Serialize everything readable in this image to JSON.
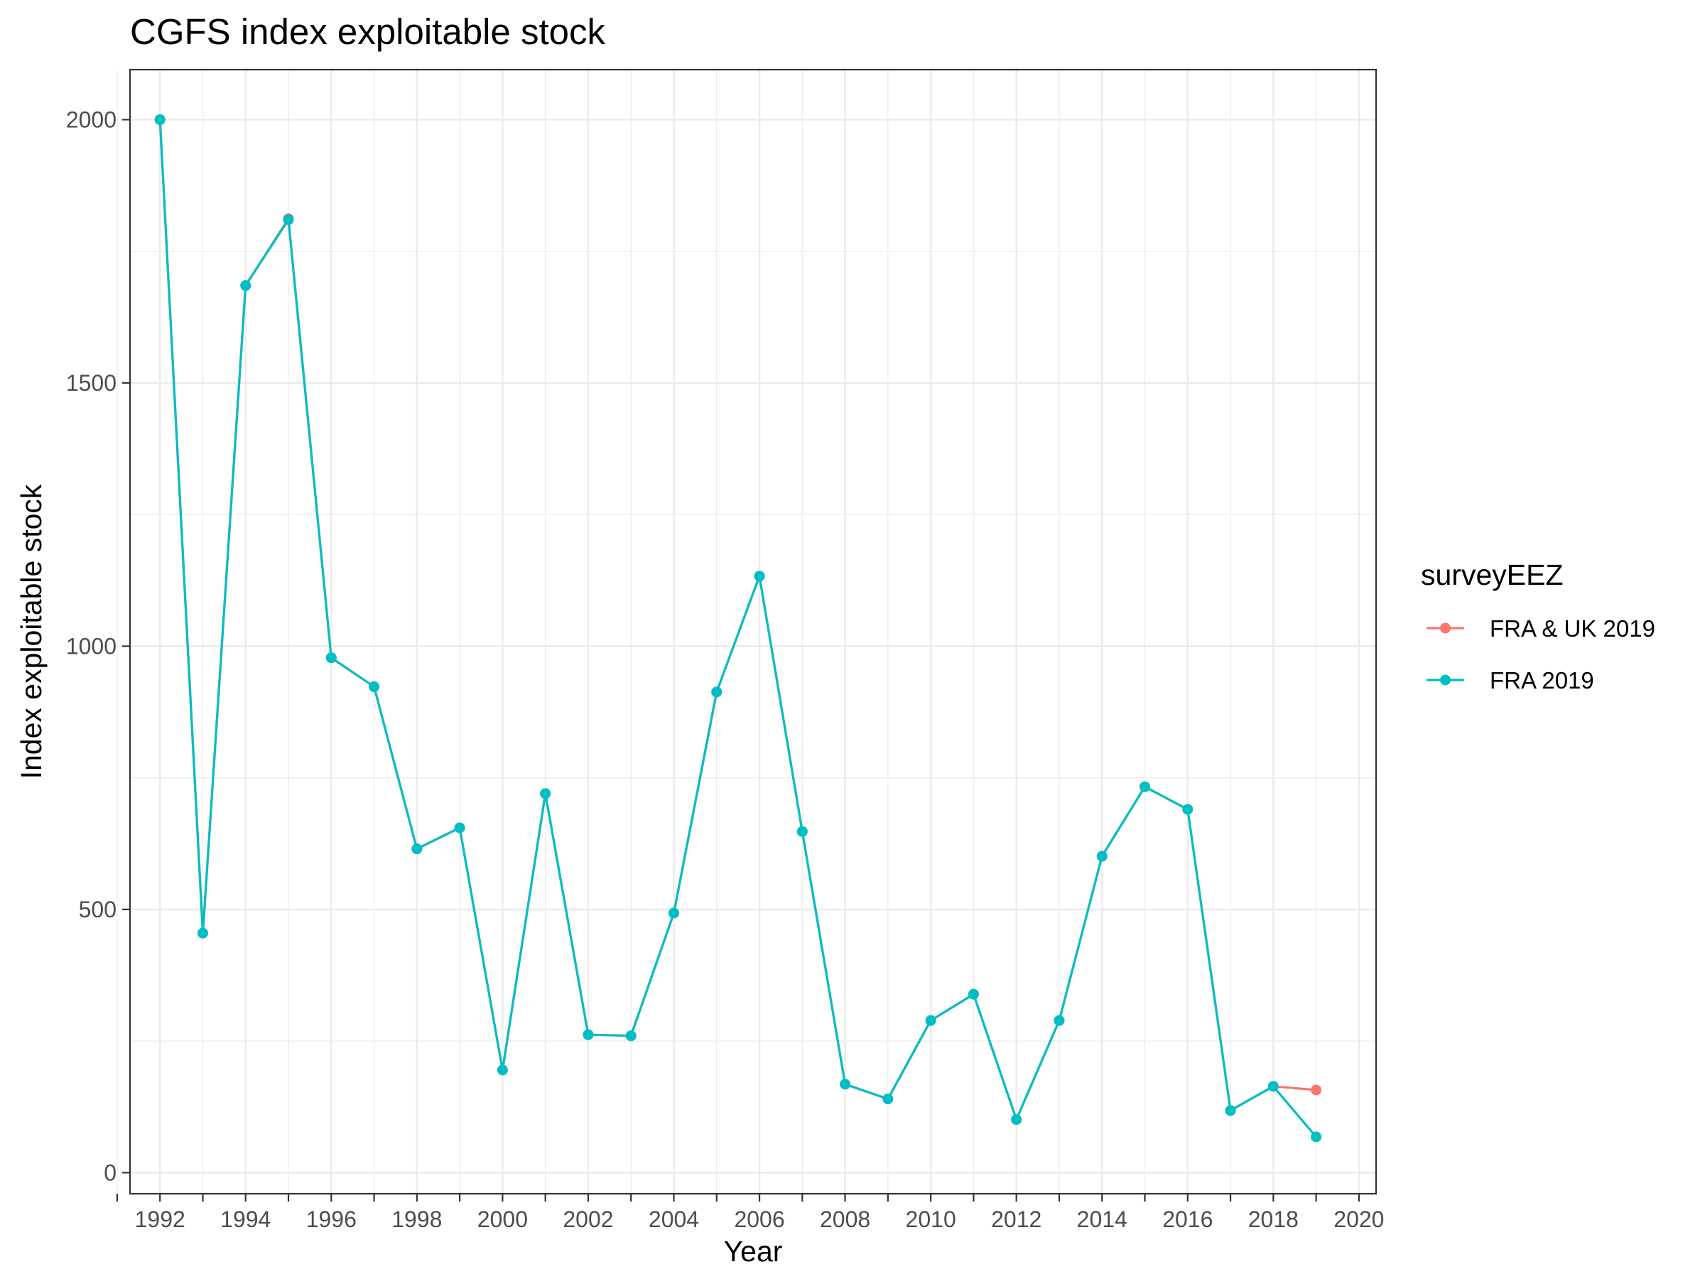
{
  "chart_data": {
    "type": "line",
    "title": "CGFS index exploitable stock",
    "xlabel": "Year",
    "ylabel": "Index exploitable stock",
    "xlim": [
      1991.3,
      2020.4
    ],
    "ylim": [
      -40,
      2095
    ],
    "x_ticks": [
      1992,
      1994,
      1996,
      1998,
      2000,
      2002,
      2004,
      2006,
      2008,
      2010,
      2012,
      2014,
      2016,
      2018,
      2020
    ],
    "x_minor_ticks": [
      1991,
      1993,
      1995,
      1997,
      1999,
      2001,
      2003,
      2005,
      2007,
      2009,
      2011,
      2013,
      2015,
      2017,
      2019
    ],
    "y_ticks": [
      0,
      500,
      1000,
      1500,
      2000
    ],
    "y_minor_ticks": [
      250,
      750,
      1250,
      1750
    ],
    "grid": true,
    "legend": {
      "title": "surveyEEZ",
      "position": "right"
    },
    "series": [
      {
        "name": "FRA & UK 2019",
        "color": "#F8766D",
        "x": [
          1992,
          1993,
          1994,
          1995,
          1996,
          1997,
          1998,
          1999,
          2000,
          2001,
          2002,
          2003,
          2004,
          2005,
          2006,
          2007,
          2008,
          2009,
          2010,
          2011,
          2012,
          2013,
          2014,
          2015,
          2016,
          2017,
          2018,
          2019
        ],
        "values": [
          2000,
          455,
          1685,
          1812,
          978,
          923,
          615,
          655,
          195,
          720,
          262,
          260,
          493,
          913,
          1133,
          648,
          168,
          140,
          289,
          339,
          101,
          289,
          601,
          733,
          690,
          118,
          164,
          157
        ]
      },
      {
        "name": "FRA 2019",
        "color": "#00BFC4",
        "x": [
          1992,
          1993,
          1994,
          1995,
          1996,
          1997,
          1998,
          1999,
          2000,
          2001,
          2002,
          2003,
          2004,
          2005,
          2006,
          2007,
          2008,
          2009,
          2010,
          2011,
          2012,
          2013,
          2014,
          2015,
          2016,
          2017,
          2018,
          2019
        ],
        "values": [
          2000,
          455,
          1685,
          1810,
          978,
          923,
          615,
          655,
          195,
          720,
          262,
          260,
          493,
          913,
          1133,
          648,
          168,
          140,
          289,
          339,
          101,
          289,
          601,
          733,
          690,
          118,
          164,
          68
        ]
      }
    ]
  }
}
